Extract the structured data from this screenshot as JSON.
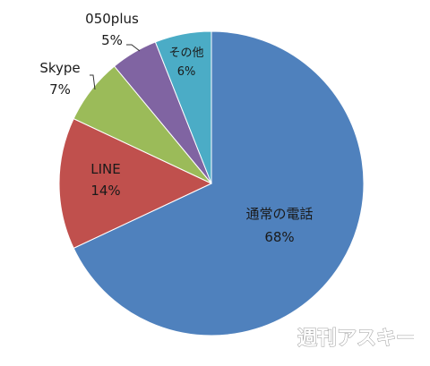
{
  "chart_data": {
    "type": "pie",
    "title": "",
    "slices": [
      {
        "label": "通常の電話",
        "value": 68,
        "display": "68%",
        "color": "#4F81BD"
      },
      {
        "label": "LINE",
        "value": 14,
        "display": "14%",
        "color": "#C0504D"
      },
      {
        "label": "Skype",
        "value": 7,
        "display": "7%",
        "color": "#9BBB59"
      },
      {
        "label": "050plus",
        "value": 5,
        "display": "5%",
        "color": "#8064A2"
      },
      {
        "label": "その他",
        "value": 6,
        "display": "6%",
        "color": "#4BACC6"
      }
    ],
    "start_angle_deg": 0,
    "direction": "clockwise"
  },
  "watermark": {
    "text": "週刊アスキー"
  }
}
